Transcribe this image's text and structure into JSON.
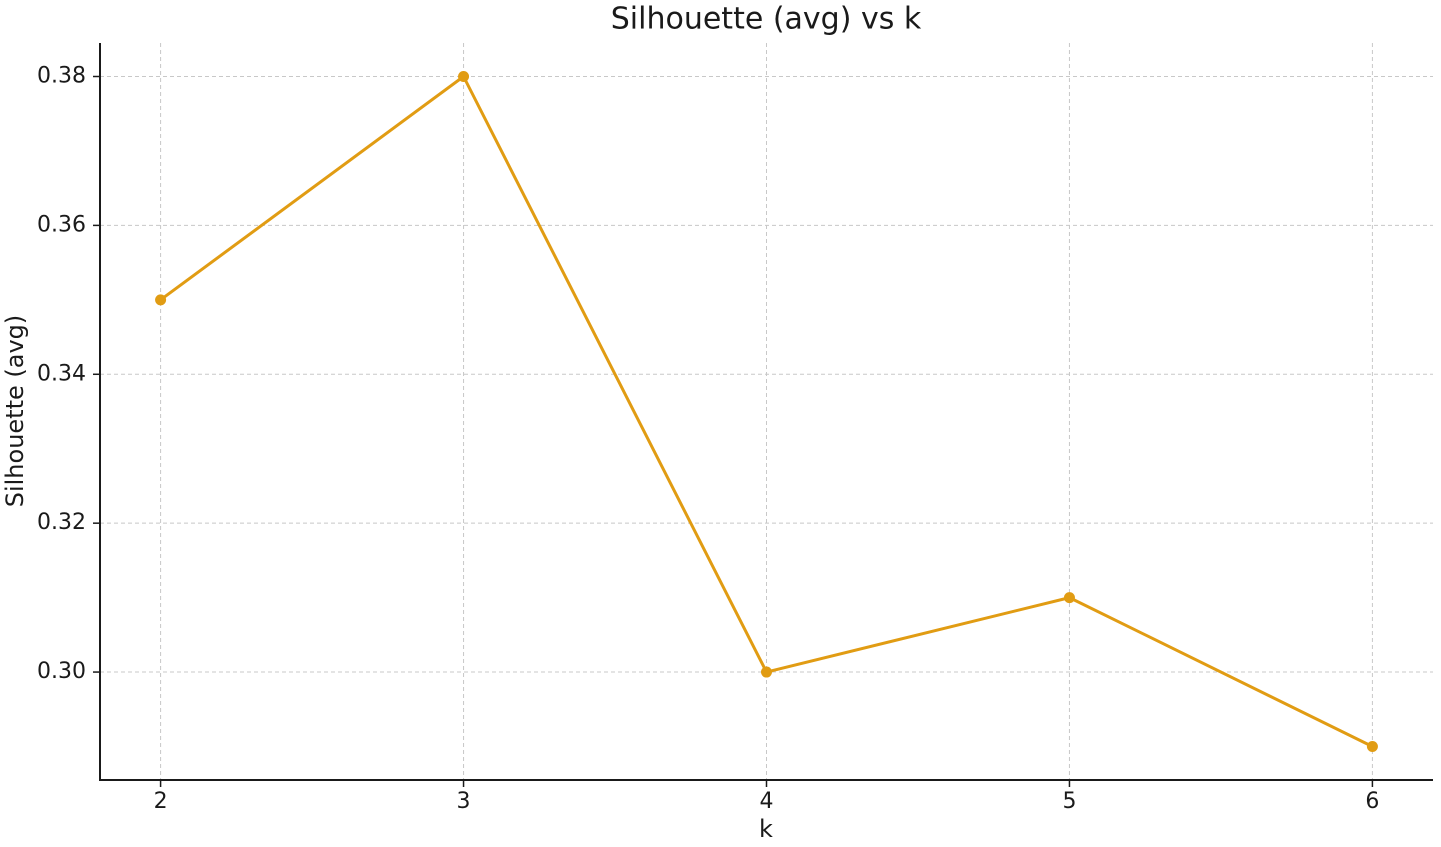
{
  "chart_data": {
    "type": "line",
    "title": "Silhouette (avg) vs k",
    "x_label": "k",
    "y_label": "Silhouette (avg)",
    "x": [
      2,
      3,
      4,
      5,
      6
    ],
    "values": [
      0.35,
      0.38,
      0.3,
      0.31,
      0.29
    ],
    "color": "#e19c13",
    "xlim": [
      1.8,
      6.2
    ],
    "ylim": [
      0.2855,
      0.3845
    ],
    "xticks": [
      2,
      3,
      4,
      5,
      6
    ],
    "yticks": [
      {
        "value": 0.3,
        "label": "0.30"
      },
      0.32,
      0.34,
      0.36,
      0.38
    ],
    "grid": true
  }
}
